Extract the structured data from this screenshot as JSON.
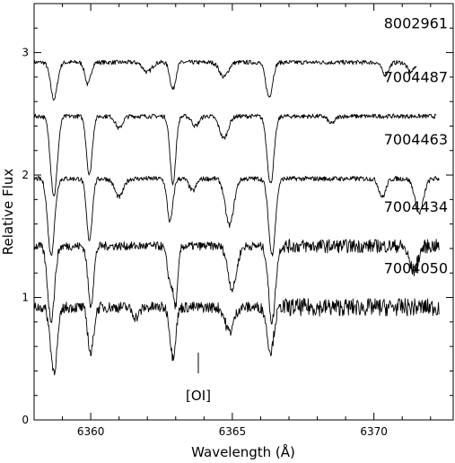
{
  "chart_data": {
    "type": "line",
    "xlabel": "Wavelength (Å)",
    "ylabel": "Relative Flux",
    "xlim": [
      6358,
      6372.8
    ],
    "ylim": [
      0,
      3.4
    ],
    "x_ticks": [
      6360,
      6365,
      6370
    ],
    "y_ticks": [
      0,
      1,
      2,
      3
    ],
    "grid": false,
    "legend": "none",
    "line_color": "#000000",
    "annotation": {
      "label": "[OI]",
      "x": 6363.8
    },
    "series": [
      {
        "name": "8002961",
        "baseline": 2.92,
        "x_range": [
          6358.0,
          6371.5
        ],
        "absorption_lines": [
          {
            "x": 6358.7,
            "depth": 0.3,
            "width": 0.12
          },
          {
            "x": 6359.9,
            "depth": 0.18,
            "width": 0.1
          },
          {
            "x": 6362.0,
            "depth": 0.08,
            "width": 0.15
          },
          {
            "x": 6362.9,
            "depth": 0.22,
            "width": 0.1
          },
          {
            "x": 6364.7,
            "depth": 0.12,
            "width": 0.15
          },
          {
            "x": 6366.3,
            "depth": 0.28,
            "width": 0.12
          },
          {
            "x": 6370.4,
            "depth": 0.1,
            "width": 0.12
          },
          {
            "x": 6371.3,
            "depth": 0.08,
            "width": 0.12
          }
        ]
      },
      {
        "name": "7004487",
        "baseline": 2.48,
        "x_range": [
          6358.0,
          6372.2
        ],
        "absorption_lines": [
          {
            "x": 6358.7,
            "depth": 0.65,
            "width": 0.12
          },
          {
            "x": 6359.95,
            "depth": 0.48,
            "width": 0.1
          },
          {
            "x": 6361.0,
            "depth": 0.1,
            "width": 0.12
          },
          {
            "x": 6362.9,
            "depth": 0.55,
            "width": 0.1
          },
          {
            "x": 6363.7,
            "depth": 0.08,
            "width": 0.12
          },
          {
            "x": 6364.7,
            "depth": 0.18,
            "width": 0.15
          },
          {
            "x": 6366.35,
            "depth": 0.55,
            "width": 0.12
          },
          {
            "x": 6368.5,
            "depth": 0.06,
            "width": 0.12
          }
        ]
      },
      {
        "name": "7004463",
        "baseline": 1.97,
        "x_range": [
          6358.0,
          6372.3
        ],
        "absorption_lines": [
          {
            "x": 6358.6,
            "depth": 0.62,
            "width": 0.12
          },
          {
            "x": 6359.95,
            "depth": 0.5,
            "width": 0.1
          },
          {
            "x": 6361.0,
            "depth": 0.15,
            "width": 0.15
          },
          {
            "x": 6362.8,
            "depth": 0.35,
            "width": 0.1
          },
          {
            "x": 6363.6,
            "depth": 0.1,
            "width": 0.12
          },
          {
            "x": 6364.9,
            "depth": 0.38,
            "width": 0.15
          },
          {
            "x": 6366.4,
            "depth": 0.62,
            "width": 0.12
          },
          {
            "x": 6370.3,
            "depth": 0.15,
            "width": 0.12
          },
          {
            "x": 6371.6,
            "depth": 0.28,
            "width": 0.15
          }
        ]
      },
      {
        "name": "7004434",
        "baseline": 1.42,
        "x_range": [
          6358.0,
          6372.3
        ],
        "absorption_lines": [
          {
            "x": 6358.6,
            "depth": 0.6,
            "width": 0.12
          },
          {
            "x": 6360.0,
            "depth": 0.48,
            "width": 0.1
          },
          {
            "x": 6362.8,
            "depth": 0.28,
            "width": 0.1
          },
          {
            "x": 6363.0,
            "depth": 0.45,
            "width": 0.08
          },
          {
            "x": 6365.0,
            "depth": 0.35,
            "width": 0.15
          },
          {
            "x": 6366.4,
            "depth": 0.62,
            "width": 0.12
          },
          {
            "x": 6371.4,
            "depth": 0.2,
            "width": 0.15
          }
        ]
      },
      {
        "name": "7004050",
        "baseline": 0.92,
        "x_range": [
          6358.0,
          6372.3
        ],
        "absorption_lines": [
          {
            "x": 6358.7,
            "depth": 0.52,
            "width": 0.12
          },
          {
            "x": 6360.0,
            "depth": 0.38,
            "width": 0.1
          },
          {
            "x": 6361.6,
            "depth": 0.08,
            "width": 0.12
          },
          {
            "x": 6362.9,
            "depth": 0.4,
            "width": 0.1
          },
          {
            "x": 6364.9,
            "depth": 0.2,
            "width": 0.15
          },
          {
            "x": 6366.35,
            "depth": 0.36,
            "width": 0.12
          }
        ]
      }
    ]
  }
}
